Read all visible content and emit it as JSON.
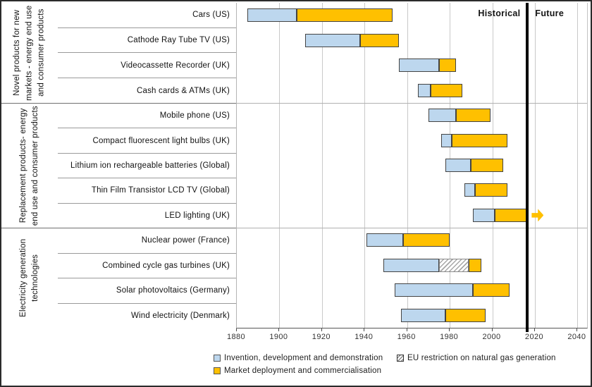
{
  "chart_data": {
    "type": "bar",
    "orientation": "horizontal-gantt",
    "title": "",
    "x_axis": {
      "label": "",
      "min": 1880,
      "max": 2040,
      "tick_step": 20,
      "ticks": [
        1880,
        1900,
        1920,
        1940,
        1960,
        1980,
        2000,
        2020,
        2040
      ],
      "plot_domain_end": 2044.5,
      "grid": "vertical-on"
    },
    "divider_year": 2016.5,
    "annotations": {
      "historical": "Historical",
      "future": "Future"
    },
    "groups": [
      {
        "label": "Novel products for new markets - energy end use and consumer products"
      },
      {
        "label": "Replacement products- energy end use and consumer products"
      },
      {
        "label": "Electricity generation technologies"
      }
    ],
    "rows": [
      {
        "group": 0,
        "label": "Cars (US)",
        "invention": [
          1885,
          1908
        ],
        "deployment": [
          1908,
          1953
        ]
      },
      {
        "group": 0,
        "label": "Cathode Ray Tube TV (US)",
        "invention": [
          1912,
          1938
        ],
        "deployment": [
          1938,
          1956
        ]
      },
      {
        "group": 0,
        "label": "Videocassette Recorder (UK)",
        "invention": [
          1956,
          1975
        ],
        "deployment": [
          1975,
          1983
        ]
      },
      {
        "group": 0,
        "label": "Cash cards & ATMs (UK)",
        "invention": [
          1965,
          1971
        ],
        "deployment": [
          1971,
          1986
        ]
      },
      {
        "group": 1,
        "label": "Mobile phone (US)",
        "invention": [
          1970,
          1983
        ],
        "deployment": [
          1983,
          1999
        ]
      },
      {
        "group": 1,
        "label": "Compact fluorescent light bulbs (UK)",
        "invention": [
          1976,
          1981
        ],
        "deployment": [
          1981,
          2007
        ]
      },
      {
        "group": 1,
        "label": "Lithium ion rechargeable batteries (Global)",
        "invention": [
          1978,
          1990
        ],
        "deployment": [
          1990,
          2005
        ]
      },
      {
        "group": 1,
        "label": "Thin Film Transistor LCD TV (Global)",
        "invention": [
          1987,
          1992
        ],
        "deployment": [
          1992,
          2007
        ]
      },
      {
        "group": 1,
        "label": "LED lighting (UK)",
        "invention": [
          1991,
          2001
        ],
        "deployment": [
          2001,
          2016.5
        ],
        "future_arrow": true
      },
      {
        "group": 2,
        "label": "Nuclear power (France)",
        "invention": [
          1941,
          1958
        ],
        "deployment": [
          1958,
          1980
        ]
      },
      {
        "group": 2,
        "label": "Combined cycle gas turbines (UK)",
        "invention": [
          1949,
          1975
        ],
        "restriction": [
          1975,
          1989
        ],
        "deployment": [
          1989,
          1995
        ]
      },
      {
        "group": 2,
        "label": "Solar photovoltaics (Germany)",
        "invention": [
          1954,
          1991
        ],
        "deployment": [
          1991,
          2008
        ]
      },
      {
        "group": 2,
        "label": "Wind electricity (Denmark)",
        "invention": [
          1957,
          1978
        ],
        "deployment": [
          1978,
          1997
        ]
      }
    ],
    "legend": [
      {
        "key": "invention",
        "label": "Invention, development and demonstration",
        "swatch": "solid",
        "color": "#BDD7EE"
      },
      {
        "key": "deployment",
        "label": "Market deployment and commercialisation",
        "swatch": "solid",
        "color": "#FFC000"
      },
      {
        "key": "restriction",
        "label": "EU restriction on natural gas generation",
        "swatch": "hatch",
        "color": "#FFFFFF"
      }
    ],
    "colors": {
      "invention": "#BDD7EE",
      "deployment": "#FFC000",
      "bar_border": "#444444",
      "divider": "#000000",
      "future_arrow": "#FFC000",
      "gridline": "#C9C9C9"
    }
  }
}
